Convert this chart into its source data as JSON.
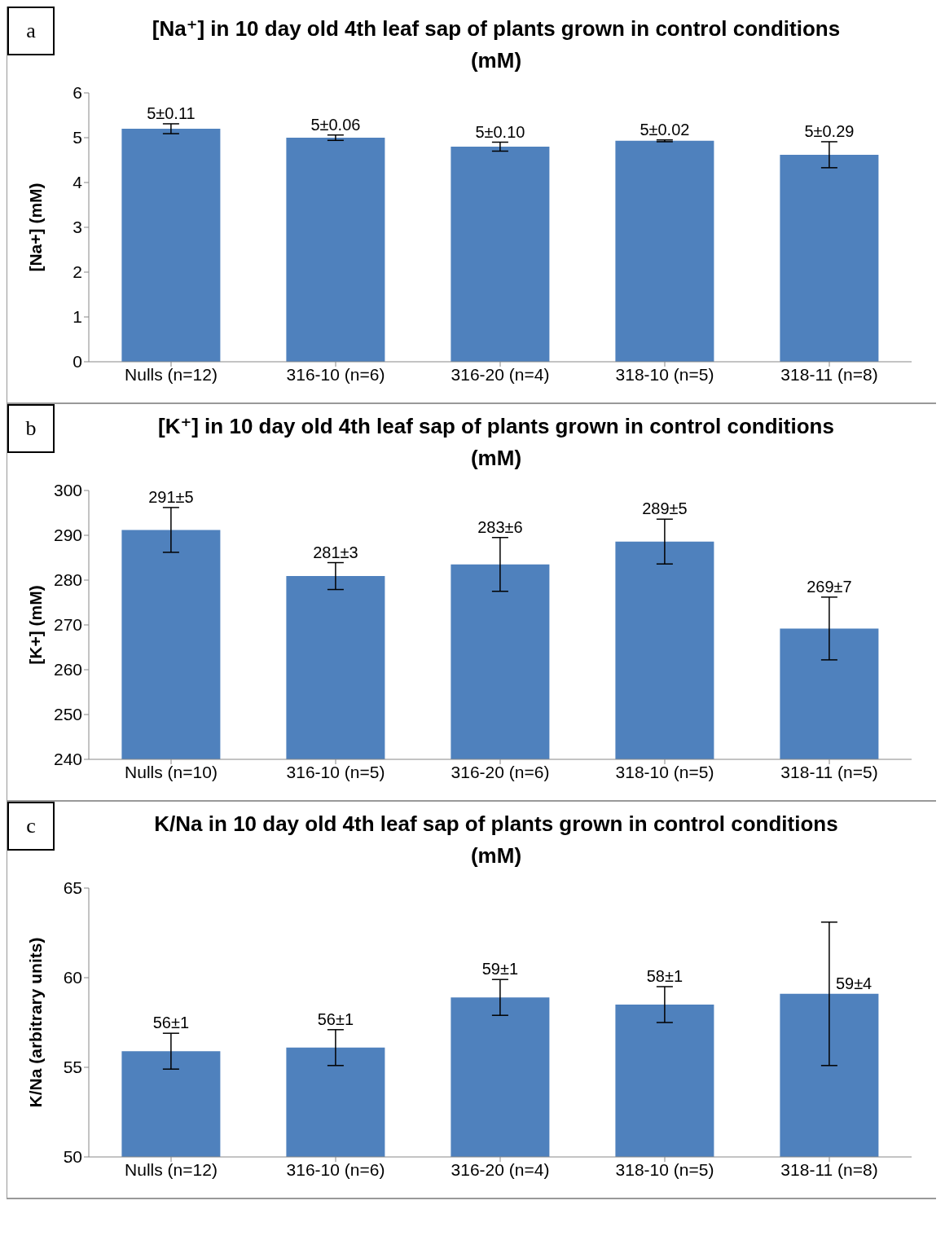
{
  "chart_data": [
    {
      "type": "bar",
      "title": "[Na⁺] in 10 day old 4th leaf sap of plants grown in control conditions (mM)",
      "ylabel": "[Na+] (mM)",
      "annotations": [
        "a"
      ],
      "categories": [
        "Nulls (n=12)",
        "316-10 (n=6)",
        "316-20 (n=4)",
        "318-10 (n=5)",
        "318-11 (n=8)"
      ],
      "values": [
        5.2,
        5.0,
        4.8,
        4.93,
        4.62
      ],
      "errors": [
        0.11,
        0.06,
        0.1,
        0.02,
        0.29
      ],
      "value_labels": [
        "5±0.11",
        "5±0.06",
        "5±0.10",
        "5±0.02",
        "5±0.29"
      ],
      "color": "#4f81bd",
      "ylim": [
        0,
        6
      ],
      "yticks": [
        0,
        1,
        2,
        3,
        4,
        5,
        6
      ]
    },
    {
      "type": "bar",
      "title": "[K⁺] in 10 day old 4th leaf sap of plants grown in control conditions (mM)",
      "ylabel": "[K+] (mM)",
      "annotations": [
        "b"
      ],
      "categories": [
        "Nulls (n=10)",
        "316-10 (n=5)",
        "316-20 (n=6)",
        "318-10 (n=5)",
        "318-11 (n=5)"
      ],
      "values": [
        291.2,
        280.9,
        283.5,
        288.6,
        269.2
      ],
      "errors": [
        5,
        3,
        6,
        5,
        7
      ],
      "value_labels": [
        "291±5",
        "281±3",
        "283±6",
        "289±5",
        "269±7"
      ],
      "color": "#4f81bd",
      "ylim": [
        240,
        300
      ],
      "yticks": [
        240,
        250,
        260,
        270,
        280,
        290,
        300
      ]
    },
    {
      "type": "bar",
      "title": "K/Na in 10 day old 4th leaf sap of plants grown in control conditions (mM)",
      "ylabel": "K/Na (arbitrary units)",
      "annotations": [
        "c"
      ],
      "categories": [
        "Nulls (n=12)",
        "316-10 (n=6)",
        "316-20 (n=4)",
        "318-10 (n=5)",
        "318-11 (n=8)"
      ],
      "values": [
        55.9,
        56.1,
        58.9,
        58.5,
        59.1
      ],
      "errors": [
        1,
        1,
        1,
        1,
        4
      ],
      "value_labels": [
        "56±1",
        "56±1",
        "59±1",
        "58±1",
        "59±4"
      ],
      "color": "#4f81bd",
      "ylim": [
        50,
        65
      ],
      "yticks": [
        50,
        55,
        60,
        65
      ]
    }
  ]
}
